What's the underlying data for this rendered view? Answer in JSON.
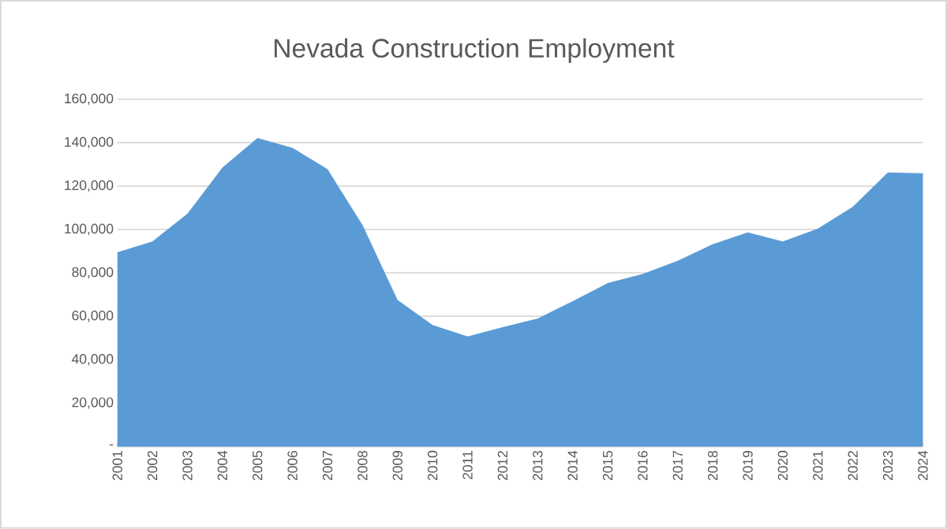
{
  "chart_data": {
    "type": "area",
    "title": "Nevada Construction Employment",
    "categories": [
      "2001",
      "2002",
      "2003",
      "2004",
      "2005",
      "2006",
      "2007",
      "2008",
      "2009",
      "2010",
      "2011",
      "2012",
      "2013",
      "2014",
      "2015",
      "2016",
      "2017",
      "2018",
      "2019",
      "2020",
      "2021",
      "2022",
      "2023",
      "2024"
    ],
    "values": [
      89500,
      94500,
      107300,
      128500,
      142200,
      137600,
      127800,
      102000,
      67500,
      56000,
      50700,
      55000,
      59000,
      67000,
      75300,
      79500,
      85600,
      93200,
      98700,
      94500,
      100400,
      110500,
      126300,
      125900
    ],
    "color": "#5b9bd5",
    "ylim": [
      0,
      160000
    ],
    "yticks": [
      {
        "value": 0,
        "label": "-"
      },
      {
        "value": 20000,
        "label": "20,000"
      },
      {
        "value": 40000,
        "label": "40,000"
      },
      {
        "value": 60000,
        "label": "60,000"
      },
      {
        "value": 80000,
        "label": "80,000"
      },
      {
        "value": 100000,
        "label": "100,000"
      },
      {
        "value": 120000,
        "label": "120,000"
      },
      {
        "value": 140000,
        "label": "140,000"
      },
      {
        "value": 160000,
        "label": "160,000"
      }
    ],
    "grid": "y"
  }
}
